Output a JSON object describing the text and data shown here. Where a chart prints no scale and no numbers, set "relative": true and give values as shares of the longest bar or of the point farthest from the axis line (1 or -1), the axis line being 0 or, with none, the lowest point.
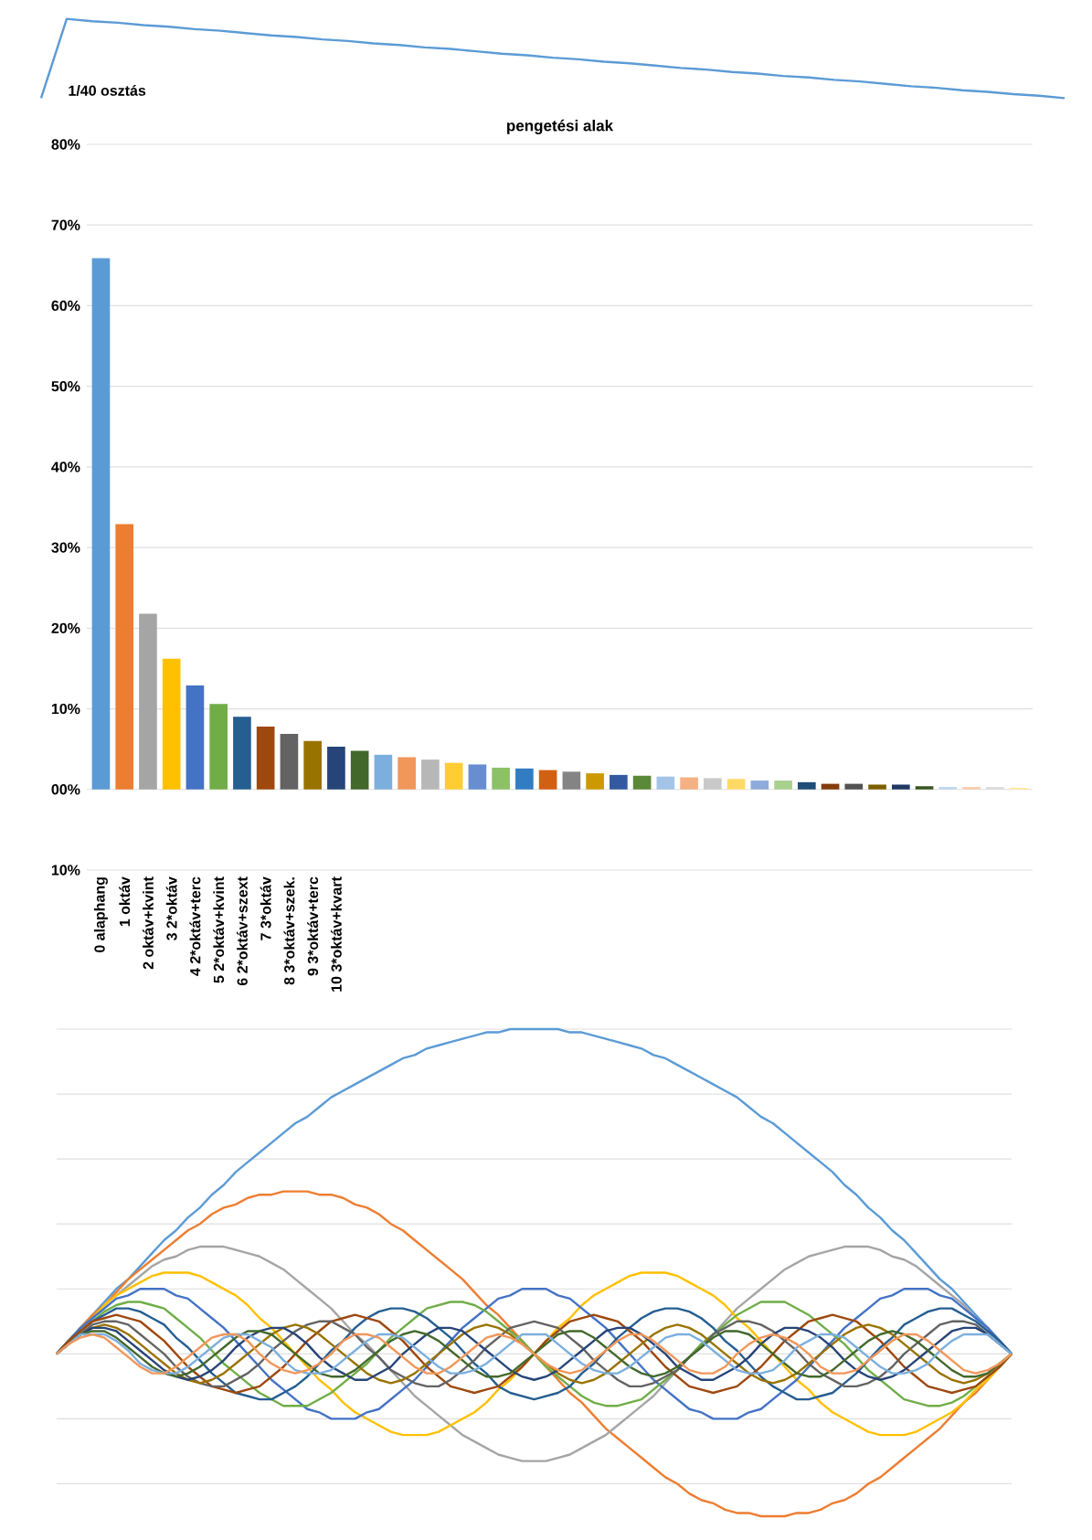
{
  "chart_data": [
    {
      "type": "line",
      "relative": true,
      "tick_labels": false,
      "color": "#5b9bd5",
      "categories": [
        null,
        null,
        null,
        null,
        null,
        null,
        null,
        null,
        null,
        null,
        null,
        null,
        null,
        null,
        null,
        null,
        null,
        null,
        null,
        null,
        null,
        null,
        null,
        null,
        null,
        null,
        null,
        null,
        null,
        null,
        null,
        null,
        null,
        null,
        null,
        null,
        null,
        null,
        null,
        null,
        null
      ],
      "values": [
        0,
        1,
        0.97,
        0.95,
        0.92,
        0.9,
        0.87,
        0.85,
        0.82,
        0.79,
        0.77,
        0.74,
        0.72,
        0.69,
        0.67,
        0.64,
        0.62,
        0.59,
        0.56,
        0.54,
        0.51,
        0.49,
        0.46,
        0.44,
        0.41,
        0.38,
        0.36,
        0.33,
        0.31,
        0.28,
        0.26,
        0.23,
        0.21,
        0.18,
        0.15,
        0.13,
        0.1,
        0.08,
        0.05,
        0.03,
        0
      ],
      "annotations": [
        "1/40 osztás"
      ]
    },
    {
      "type": "bar",
      "title": "pengetési alak",
      "grid": "y",
      "ylim": [
        -10,
        80
      ],
      "yticks": [
        {
          "value": -10,
          "label": "10%"
        },
        {
          "value": 0,
          "label": "00%"
        },
        {
          "value": 10,
          "label": "10%"
        },
        {
          "value": 20,
          "label": "20%"
        },
        {
          "value": 30,
          "label": "30%"
        },
        {
          "value": 40,
          "label": "40%"
        },
        {
          "value": 50,
          "label": "50%"
        },
        {
          "value": 60,
          "label": "60%"
        },
        {
          "value": 70,
          "label": "70%"
        },
        {
          "value": 80,
          "label": "80%"
        }
      ],
      "categories": [
        "0 alaphang",
        "1 oktáv",
        "2 oktáv+kvint",
        "3 2*oktáv",
        "4 2*oktáv+terc",
        "5 2*oktáv+kvint",
        "6 2*oktáv+szext",
        "7 3*oktáv",
        "8 3*oktáv+szek.",
        "9 3*oktáv+terc",
        "10 3*oktáv+kvart",
        null,
        null,
        null,
        null,
        null,
        null,
        null,
        null,
        null,
        null,
        null,
        null,
        null,
        null,
        null,
        null,
        null,
        null,
        null,
        null,
        null,
        null,
        null,
        null,
        null,
        null,
        null,
        null,
        null
      ],
      "values": [
        65.9,
        32.9,
        21.8,
        16.2,
        12.9,
        10.6,
        9.0,
        7.8,
        6.9,
        6.0,
        5.3,
        4.8,
        4.3,
        4.0,
        3.7,
        3.3,
        3.1,
        2.7,
        2.6,
        2.4,
        2.2,
        2.0,
        1.8,
        1.7,
        1.6,
        1.5,
        1.4,
        1.3,
        1.1,
        1.1,
        0.9,
        0.7,
        0.7,
        0.6,
        0.6,
        0.4,
        0.3,
        0.3,
        0.3,
        0.2
      ],
      "colors": [
        "#5b9bd5",
        "#ed7d31",
        "#a5a5a5",
        "#ffc000",
        "#4472c4",
        "#70ad47",
        "#255e91",
        "#9e480e",
        "#636363",
        "#997300",
        "#264478",
        "#43682b",
        "#7cafdd",
        "#f1975a",
        "#b7b7b7",
        "#ffcd33",
        "#698ed0",
        "#8cc168",
        "#327dc2",
        "#d26012",
        "#848484",
        "#cc9a00",
        "#335aa1",
        "#5a8a39",
        "#a3c4e7",
        "#f4b183",
        "#c9c9c9",
        "#ffd966",
        "#8faadc",
        "#a9d18e",
        "#1f4e79",
        "#843c0c",
        "#525252",
        "#7f6000",
        "#203864",
        "#385723",
        "#bdd7ee",
        "#f8cbad",
        "#dbdbdb",
        "#ffe699"
      ]
    },
    {
      "type": "line",
      "relative": true,
      "tick_labels": false,
      "grid": "y",
      "categories": [
        null,
        null,
        null,
        null,
        null,
        null,
        null,
        null,
        null,
        null,
        null,
        null,
        null,
        null,
        null,
        null,
        null,
        null,
        null,
        null,
        null,
        null,
        null,
        null,
        null,
        null,
        null,
        null,
        null,
        null,
        null,
        null,
        null,
        null,
        null,
        null,
        null,
        null,
        null,
        null,
        null,
        null,
        null,
        null,
        null,
        null,
        null,
        null,
        null,
        null,
        null,
        null,
        null,
        null,
        null,
        null,
        null,
        null,
        null,
        null,
        null,
        null,
        null,
        null,
        null,
        null,
        null,
        null,
        null,
        null,
        null,
        null,
        null,
        null,
        null,
        null,
        null,
        null,
        null,
        null,
        null
      ],
      "series": [
        {
          "color": "#5b9bd5",
          "values": [
            0,
            0.04,
            0.08,
            0.12,
            0.16,
            0.2,
            0.23,
            0.27,
            0.31,
            0.35,
            0.38,
            0.42,
            0.45,
            0.49,
            0.52,
            0.56,
            0.59,
            0.62,
            0.65,
            0.68,
            0.71,
            0.73,
            0.76,
            0.79,
            0.81,
            0.83,
            0.85,
            0.87,
            0.89,
            0.91,
            0.92,
            0.94,
            0.95,
            0.96,
            0.97,
            0.98,
            0.99,
            0.99,
            1,
            1,
            1,
            1,
            1,
            0.99,
            0.99,
            0.98,
            0.97,
            0.96,
            0.95,
            0.94,
            0.92,
            0.91,
            0.89,
            0.87,
            0.85,
            0.83,
            0.81,
            0.79,
            0.76,
            0.73,
            0.71,
            0.68,
            0.65,
            0.62,
            0.59,
            0.56,
            0.52,
            0.49,
            0.45,
            0.42,
            0.38,
            0.35,
            0.31,
            0.27,
            0.23,
            0.2,
            0.16,
            0.12,
            0.08,
            0.04,
            0
          ]
        },
        {
          "color": "#ed7d31",
          "values": [
            0,
            0.04,
            0.08,
            0.12,
            0.15,
            0.19,
            0.23,
            0.26,
            0.29,
            0.32,
            0.35,
            0.38,
            0.4,
            0.43,
            0.45,
            0.46,
            0.48,
            0.49,
            0.49,
            0.5,
            0.5,
            0.5,
            0.49,
            0.49,
            0.48,
            0.46,
            0.45,
            0.43,
            0.4,
            0.38,
            0.35,
            0.32,
            0.29,
            0.26,
            0.23,
            0.19,
            0.15,
            0.12,
            0.08,
            0.04,
            0,
            -0.04,
            -0.08,
            -0.12,
            -0.15,
            -0.19,
            -0.23,
            -0.26,
            -0.29,
            -0.32,
            -0.35,
            -0.38,
            -0.4,
            -0.43,
            -0.45,
            -0.46,
            -0.48,
            -0.49,
            -0.49,
            -0.5,
            -0.5,
            -0.5,
            -0.49,
            -0.49,
            -0.48,
            -0.46,
            -0.45,
            -0.43,
            -0.4,
            -0.38,
            -0.35,
            -0.32,
            -0.29,
            -0.26,
            -0.23,
            -0.19,
            -0.15,
            -0.12,
            -0.08,
            -0.04,
            0
          ]
        },
        {
          "color": "#a5a5a5",
          "values": [
            0,
            0.04,
            0.08,
            0.11,
            0.15,
            0.18,
            0.21,
            0.24,
            0.27,
            0.29,
            0.3,
            0.32,
            0.33,
            0.33,
            0.33,
            0.32,
            0.31,
            0.3,
            0.28,
            0.26,
            0.23,
            0.2,
            0.17,
            0.14,
            0.1,
            0.06,
            0.03,
            -0.01,
            -0.05,
            -0.09,
            -0.13,
            -0.16,
            -0.19,
            -0.22,
            -0.25,
            -0.27,
            -0.29,
            -0.31,
            -0.32,
            -0.33,
            -0.33,
            -0.33,
            -0.32,
            -0.31,
            -0.29,
            -0.27,
            -0.25,
            -0.22,
            -0.19,
            -0.16,
            -0.13,
            -0.09,
            -0.05,
            -0.01,
            0.03,
            0.06,
            0.1,
            0.14,
            0.17,
            0.2,
            0.23,
            0.26,
            0.28,
            0.3,
            0.31,
            0.32,
            0.33,
            0.33,
            0.33,
            0.32,
            0.3,
            0.29,
            0.27,
            0.24,
            0.21,
            0.18,
            0.15,
            0.11,
            0.08,
            0.04,
            0
          ]
        },
        {
          "color": "#ffc000",
          "values": [
            null,
            null,
            0.08,
            0.11,
            0.15,
            0.18,
            0.2,
            0.22,
            0.24,
            0.25,
            0.25,
            0.25,
            0.24,
            0.22,
            0.2,
            0.18,
            0.15,
            0.11,
            0.08,
            0.04,
            0,
            -0.04,
            -0.08,
            -0.11,
            -0.15,
            -0.18,
            -0.2,
            -0.22,
            -0.24,
            -0.25,
            -0.25,
            -0.25,
            -0.24,
            -0.22,
            -0.2,
            -0.18,
            -0.15,
            -0.11,
            -0.08,
            -0.04,
            0,
            0.04,
            0.08,
            0.11,
            0.15,
            0.18,
            0.2,
            0.22,
            0.24,
            0.25,
            0.25,
            0.25,
            0.24,
            0.22,
            0.2,
            0.18,
            0.15,
            0.11,
            0.08,
            0.04,
            0,
            -0.04,
            -0.08,
            -0.11,
            -0.15,
            -0.18,
            -0.2,
            -0.22,
            -0.24,
            -0.25,
            -0.25,
            -0.25,
            -0.24,
            -0.22,
            -0.2,
            -0.18,
            -0.15,
            -0.11,
            -0.08,
            -0.04,
            0
          ]
        },
        {
          "color": "#4472c4",
          "values": [
            0,
            0.04,
            0.08,
            0.11,
            0.14,
            0.17,
            0.18,
            0.2,
            0.2,
            0.2,
            0.18,
            0.17,
            0.14,
            0.11,
            0.08,
            0.04,
            0,
            -0.04,
            -0.08,
            -0.11,
            -0.14,
            -0.17,
            -0.18,
            -0.2,
            -0.2,
            -0.2,
            -0.18,
            -0.17,
            -0.14,
            -0.11,
            -0.08,
            -0.04,
            0,
            0.04,
            0.08,
            0.11,
            0.14,
            0.17,
            0.18,
            0.2,
            0.2,
            0.2,
            0.18,
            0.17,
            0.14,
            0.11,
            0.08,
            0.04,
            0,
            -0.04,
            -0.08,
            -0.11,
            -0.14,
            -0.17,
            -0.18,
            -0.2,
            -0.2,
            -0.2,
            -0.18,
            -0.17,
            -0.14,
            -0.11,
            -0.08,
            -0.04,
            0,
            0.04,
            0.08,
            0.11,
            0.14,
            0.17,
            0.18,
            0.2,
            0.2,
            0.2,
            0.18,
            0.17,
            0.14,
            0.11,
            0.08,
            0.04,
            0
          ]
        },
        {
          "color": "#70ad47",
          "values": [
            0,
            0.04,
            0.07,
            0.1,
            0.13,
            0.15,
            0.16,
            0.16,
            0.15,
            0.14,
            0.11,
            0.08,
            0.05,
            0.01,
            -0.03,
            -0.06,
            -0.09,
            -0.12,
            -0.14,
            -0.16,
            -0.16,
            -0.16,
            -0.14,
            -0.12,
            -0.09,
            -0.06,
            -0.03,
            0.01,
            0.05,
            0.08,
            0.11,
            0.14,
            0.15,
            0.16,
            0.16,
            0.15,
            0.13,
            0.1,
            0.07,
            0.04,
            0,
            -0.04,
            -0.07,
            -0.1,
            -0.13,
            -0.15,
            -0.16,
            -0.16,
            -0.15,
            -0.14,
            -0.11,
            -0.08,
            -0.05,
            -0.01,
            0.03,
            0.06,
            0.09,
            0.12,
            0.14,
            0.16,
            0.16,
            0.16,
            0.14,
            0.12,
            0.09,
            0.06,
            0.03,
            -0.01,
            -0.05,
            -0.08,
            -0.11,
            -0.14,
            -0.15,
            -0.16,
            -0.16,
            -0.15,
            -0.13,
            -0.1,
            -0.07,
            -0.04,
            0
          ]
        },
        {
          "color": "#255e91",
          "values": [
            0,
            0.04,
            0.07,
            0.1,
            0.12,
            0.14,
            0.14,
            0.13,
            0.11,
            0.09,
            0.05,
            0.02,
            -0.02,
            -0.06,
            -0.09,
            -0.12,
            -0.13,
            -0.14,
            -0.14,
            -0.12,
            -0.1,
            -0.07,
            -0.03,
            0.01,
            0.04,
            0.08,
            0.11,
            0.13,
            0.14,
            0.14,
            0.13,
            0.11,
            0.08,
            0.05,
            0.01,
            -0.03,
            -0.06,
            -0.1,
            -0.12,
            -0.13,
            -0.14,
            -0.13,
            -0.12,
            -0.1,
            -0.06,
            -0.03,
            0.01,
            0.05,
            0.08,
            0.11,
            0.13,
            0.14,
            0.14,
            0.13,
            0.11,
            0.08,
            0.04,
            0.01,
            -0.03,
            -0.07,
            -0.1,
            -0.12,
            -0.14,
            -0.14,
            -0.13,
            -0.12,
            -0.09,
            -0.06,
            -0.02,
            0.02,
            0.05,
            0.09,
            0.11,
            0.13,
            0.14,
            0.14,
            0.12,
            0.1,
            0.07,
            0.04,
            0
          ]
        },
        {
          "color": "#9e480e",
          "values": [
            0,
            0.04,
            0.07,
            0.1,
            0.11,
            0.12,
            0.11,
            0.1,
            0.07,
            0.04,
            0,
            -0.04,
            -0.07,
            -0.1,
            -0.11,
            -0.12,
            -0.11,
            -0.1,
            -0.07,
            -0.04,
            0,
            0.04,
            0.07,
            0.1,
            0.11,
            0.12,
            0.11,
            0.1,
            0.07,
            0.04,
            0,
            -0.04,
            -0.07,
            -0.1,
            -0.11,
            -0.12,
            -0.11,
            -0.1,
            -0.07,
            -0.04,
            0,
            0.04,
            0.07,
            0.1,
            0.11,
            0.12,
            0.11,
            0.1,
            0.07,
            0.04,
            0,
            -0.04,
            -0.07,
            -0.1,
            -0.11,
            -0.12,
            -0.11,
            -0.1,
            -0.07,
            -0.04,
            0,
            0.04,
            0.07,
            0.1,
            0.11,
            0.12,
            0.11,
            0.1,
            0.07,
            0.04,
            0,
            -0.04,
            -0.07,
            -0.1,
            -0.11,
            -0.12,
            -0.11,
            -0.1,
            -0.07,
            -0.04,
            0
          ]
        },
        {
          "color": "#636363",
          "values": [
            0,
            0.03,
            0.06,
            0.09,
            0.1,
            0.1,
            0.09,
            0.06,
            0.03,
            0,
            -0.04,
            -0.07,
            -0.09,
            -0.1,
            -0.1,
            -0.08,
            -0.06,
            -0.03,
            0.01,
            0.04,
            0.07,
            0.09,
            0.1,
            0.1,
            0.08,
            0.06,
            0.02,
            -0.01,
            -0.05,
            -0.07,
            -0.09,
            -0.1,
            -0.1,
            -0.08,
            -0.05,
            -0.02,
            0.02,
            0.05,
            0.08,
            0.09,
            0.1,
            0.09,
            0.08,
            0.05,
            0.02,
            -0.02,
            -0.05,
            -0.08,
            -0.1,
            -0.1,
            -0.09,
            -0.07,
            -0.05,
            -0.01,
            0.02,
            0.06,
            0.08,
            0.1,
            0.1,
            0.09,
            0.07,
            0.04,
            0.01,
            -0.03,
            -0.06,
            -0.08,
            -0.1,
            -0.1,
            -0.09,
            -0.07,
            -0.04,
            0,
            0.03,
            0.06,
            0.09,
            0.1,
            0.1,
            0.09,
            0.06,
            0.03,
            0
          ]
        },
        {
          "color": "#997300",
          "values": [
            0,
            0.03,
            0.06,
            0.08,
            0.09,
            0.08,
            0.06,
            0.03,
            0,
            -0.03,
            -0.06,
            -0.08,
            -0.09,
            -0.08,
            -0.06,
            -0.03,
            0,
            0.03,
            0.06,
            0.08,
            0.09,
            0.08,
            0.06,
            0.03,
            0,
            -0.03,
            -0.06,
            -0.08,
            -0.09,
            -0.08,
            -0.06,
            -0.03,
            0,
            0.03,
            0.06,
            0.08,
            0.09,
            0.08,
            0.06,
            0.03,
            0,
            -0.03,
            -0.06,
            -0.08,
            -0.09,
            -0.08,
            -0.06,
            -0.03,
            0,
            0.03,
            0.06,
            0.08,
            0.09,
            0.08,
            0.06,
            0.03,
            0,
            -0.03,
            -0.06,
            -0.08,
            -0.09,
            -0.08,
            -0.06,
            -0.03,
            0,
            0.03,
            0.06,
            0.08,
            0.09,
            0.08,
            0.06,
            0.03,
            0,
            -0.03,
            -0.06,
            -0.08,
            -0.09,
            -0.08,
            -0.06,
            -0.03,
            0
          ]
        },
        {
          "color": "#264478",
          "values": [
            0,
            0.03,
            0.06,
            0.08,
            0.08,
            0.07,
            0.04,
            0.01,
            -0.02,
            -0.05,
            -0.07,
            -0.08,
            -0.07,
            -0.05,
            -0.02,
            0.02,
            0.05,
            0.07,
            0.08,
            0.08,
            0.06,
            0.03,
            -0.01,
            -0.04,
            -0.06,
            -0.08,
            -0.08,
            -0.06,
            -0.04,
            0,
            0.03,
            0.06,
            0.08,
            0.08,
            0.07,
            0.04,
            0.01,
            -0.02,
            -0.05,
            -0.07,
            -0.08,
            -0.07,
            -0.05,
            -0.02,
            0.01,
            0.04,
            0.07,
            0.08,
            0.08,
            0.06,
            0.03,
            0,
            -0.04,
            -0.06,
            -0.08,
            -0.08,
            -0.06,
            -0.04,
            -0.01,
            0.03,
            0.06,
            0.08,
            0.08,
            0.07,
            0.05,
            0.02,
            -0.02,
            -0.05,
            -0.07,
            -0.08,
            -0.07,
            -0.05,
            -0.02,
            0.01,
            0.04,
            0.07,
            0.08,
            0.08,
            0.06,
            0.03,
            0
          ]
        },
        {
          "color": "#43682b",
          "values": [
            0,
            0.03,
            0.06,
            0.07,
            0.07,
            0.05,
            0.02,
            -0.01,
            -0.04,
            -0.06,
            -0.07,
            -0.06,
            -0.04,
            -0.01,
            0.02,
            0.05,
            0.07,
            0.07,
            0.06,
            0.03,
            0,
            -0.03,
            -0.06,
            -0.07,
            -0.07,
            -0.05,
            -0.02,
            0.01,
            0.04,
            0.06,
            0.07,
            0.06,
            0.04,
            0.01,
            -0.02,
            -0.05,
            -0.07,
            -0.07,
            -0.06,
            -0.03,
            0,
            0.03,
            0.06,
            0.07,
            0.07,
            0.05,
            0.02,
            -0.01,
            -0.04,
            -0.06,
            -0.07,
            -0.06,
            -0.04,
            -0.01,
            0.02,
            0.05,
            0.07,
            0.07,
            0.06,
            0.03,
            0,
            -0.03,
            -0.06,
            -0.07,
            -0.07,
            -0.05,
            -0.02,
            0.01,
            0.04,
            0.06,
            0.07,
            0.06,
            0.04,
            0.01,
            -0.02,
            -0.05,
            -0.07,
            -0.07,
            -0.06,
            -0.03,
            0
          ]
        },
        {
          "color": "#7cafdd",
          "values": [
            0,
            0.03,
            0.06,
            0.06,
            0.06,
            0.04,
            0.01,
            -0.03,
            -0.05,
            -0.06,
            -0.06,
            -0.04,
            -0.01,
            0.02,
            0.05,
            0.06,
            0.06,
            0.04,
            0.02,
            -0.02,
            -0.05,
            -0.06,
            -0.06,
            -0.05,
            -0.02,
            0.01,
            0.04,
            0.06,
            0.06,
            0.05,
            0.02,
            -0.01,
            -0.04,
            -0.06,
            -0.06,
            -0.05,
            -0.03,
            0,
            0.03,
            0.06,
            0.06,
            0.06,
            0.03,
            0,
            -0.03,
            -0.05,
            -0.06,
            -0.06,
            -0.04,
            -0.01,
            0.02,
            0.05,
            0.06,
            0.06,
            0.04,
            0.01,
            -0.02,
            -0.05,
            -0.06,
            -0.06,
            -0.05,
            -0.02,
            0.02,
            0.04,
            0.06,
            0.06,
            0.05,
            0.02,
            -0.01,
            -0.04,
            -0.06,
            -0.06,
            -0.05,
            -0.03,
            0.01,
            0.04,
            0.06,
            0.06,
            0.06,
            0.03,
            0
          ]
        },
        {
          "color": "#f1975a",
          "values": [
            0,
            0.03,
            0.05,
            0.06,
            0.05,
            0.02,
            -0.01,
            -0.04,
            -0.06,
            -0.06,
            -0.04,
            -0.01,
            0.02,
            0.05,
            0.06,
            0.06,
            0.04,
            0,
            -0.03,
            -0.05,
            -0.06,
            -0.05,
            -0.03,
            0,
            0.04,
            0.06,
            0.06,
            0.05,
            0.02,
            -0.01,
            -0.04,
            -0.06,
            -0.06,
            -0.04,
            -0.01,
            0.02,
            0.05,
            0.06,
            0.05,
            0.03,
            0,
            -0.03,
            -0.05,
            -0.06,
            -0.05,
            -0.02,
            0.01,
            0.04,
            0.06,
            0.06,
            0.04,
            0.01,
            -0.02,
            -0.05,
            -0.06,
            -0.06,
            -0.04,
            0,
            0.03,
            0.05,
            0.06,
            0.05,
            0.03,
            0,
            -0.04,
            -0.06,
            -0.06,
            -0.05,
            -0.02,
            0.01,
            0.04,
            0.06,
            0.06,
            0.04,
            0.01,
            -0.02,
            -0.05,
            -0.06,
            -0.05,
            -0.03,
            0
          ]
        }
      ]
    }
  ]
}
